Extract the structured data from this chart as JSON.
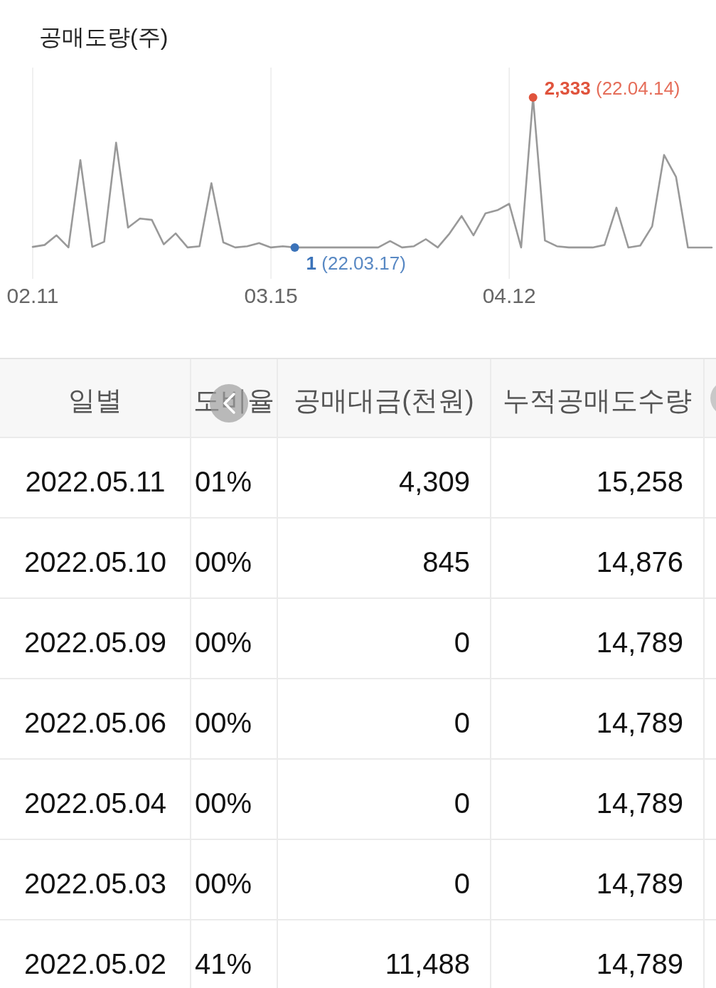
{
  "chart_data": [
    {
      "type": "line",
      "title": "공매도량(주)",
      "grid": "x",
      "tick_labels": "x",
      "categories": [
        "02.11",
        null,
        null,
        null,
        null,
        null,
        null,
        null,
        null,
        null,
        null,
        null,
        null,
        null,
        null,
        null,
        null,
        null,
        null,
        null,
        "03.15",
        null,
        null,
        null,
        null,
        null,
        null,
        null,
        null,
        null,
        null,
        null,
        null,
        null,
        null,
        null,
        null,
        null,
        null,
        null,
        "04.12",
        null,
        null,
        null,
        null,
        null,
        null,
        null,
        null,
        null,
        null,
        null,
        null,
        null,
        null,
        null,
        null,
        null
      ],
      "series": [
        {
          "type": "line",
          "color": "#999999",
          "values": [
            10,
            40,
            190,
            1,
            1360,
            10,
            90,
            1630,
            310,
            450,
            430,
            50,
            220,
            1,
            20,
            1000,
            80,
            1,
            20,
            70,
            1,
            20,
            1,
            1,
            1,
            1,
            1,
            1,
            1,
            1,
            100,
            1,
            20,
            130,
            1,
            220,
            490,
            190,
            530,
            580,
            680,
            1,
            2333,
            110,
            20,
            1,
            1,
            1,
            40,
            620,
            1,
            30,
            330,
            1440,
            1100,
            0,
            0,
            0
          ]
        },
        {
          "type": "scatter",
          "color": "#e0533c",
          "values": [
            null,
            null,
            null,
            null,
            null,
            null,
            null,
            null,
            null,
            null,
            null,
            null,
            null,
            null,
            null,
            null,
            null,
            null,
            null,
            null,
            null,
            null,
            null,
            null,
            null,
            null,
            null,
            null,
            null,
            null,
            null,
            null,
            null,
            null,
            null,
            null,
            null,
            null,
            null,
            null,
            null,
            null,
            2333,
            null,
            null,
            null,
            null,
            null,
            null,
            null,
            null,
            null,
            null,
            null,
            null,
            null,
            null,
            null
          ],
          "value_labels": [
            null,
            null,
            null,
            null,
            null,
            null,
            null,
            null,
            null,
            null,
            null,
            null,
            null,
            null,
            null,
            null,
            null,
            null,
            null,
            null,
            null,
            null,
            null,
            null,
            null,
            null,
            null,
            null,
            null,
            null,
            null,
            null,
            null,
            null,
            null,
            null,
            null,
            null,
            null,
            null,
            null,
            null,
            "2,333 (22.04.14)",
            null,
            null,
            null,
            null,
            null,
            null,
            null,
            null,
            null,
            null,
            null,
            null,
            null,
            null,
            null
          ]
        },
        {
          "type": "scatter",
          "color": "#3b73b9",
          "values": [
            null,
            null,
            null,
            null,
            null,
            null,
            null,
            null,
            null,
            null,
            null,
            null,
            null,
            null,
            null,
            null,
            null,
            null,
            null,
            null,
            null,
            null,
            1,
            null,
            null,
            null,
            null,
            null,
            null,
            null,
            null,
            null,
            null,
            null,
            null,
            null,
            null,
            null,
            null,
            null,
            null,
            null,
            null,
            null,
            null,
            null,
            null,
            null,
            null,
            null,
            null,
            null,
            null,
            null,
            null,
            null,
            null,
            null
          ],
          "value_labels": [
            null,
            null,
            null,
            null,
            null,
            null,
            null,
            null,
            null,
            null,
            null,
            null,
            null,
            null,
            null,
            null,
            null,
            null,
            null,
            null,
            null,
            null,
            "1 (22.03.17)",
            null,
            null,
            null,
            null,
            null,
            null,
            null,
            null,
            null,
            null,
            null,
            null,
            null,
            null,
            null,
            null,
            null,
            null,
            null,
            null,
            null,
            null,
            null,
            null,
            null,
            null,
            null,
            null,
            null,
            null,
            null,
            null,
            null,
            null,
            null
          ]
        }
      ]
    },
    {
      "type": "other",
      "xlabel": "일별",
      "categories": [
        "2022.05.11",
        "2022.05.10",
        "2022.05.09",
        "2022.05.06",
        "2022.05.04",
        "2022.05.03",
        "2022.05.02"
      ],
      "series": [
        {
          "name": "도비율",
          "values": [
            1,
            0,
            0,
            0,
            0,
            0,
            41
          ],
          "value_labels": [
            "01%",
            "00%",
            "00%",
            "00%",
            "00%",
            "00%",
            "41%"
          ]
        },
        {
          "name": "공매대금(천원)",
          "values": [
            4309,
            845,
            0,
            0,
            0,
            0,
            11488
          ],
          "value_labels": [
            "4,309",
            "845",
            "0",
            "0",
            "0",
            "0",
            "11,488"
          ]
        },
        {
          "name": "누적공매도수량",
          "values": [
            15258,
            14876,
            14789,
            14789,
            14789,
            14789,
            14789
          ],
          "value_labels": [
            "15,258",
            "14,876",
            "14,789",
            "14,789",
            "14,789",
            "14,789",
            "14,789"
          ]
        }
      ]
    }
  ]
}
